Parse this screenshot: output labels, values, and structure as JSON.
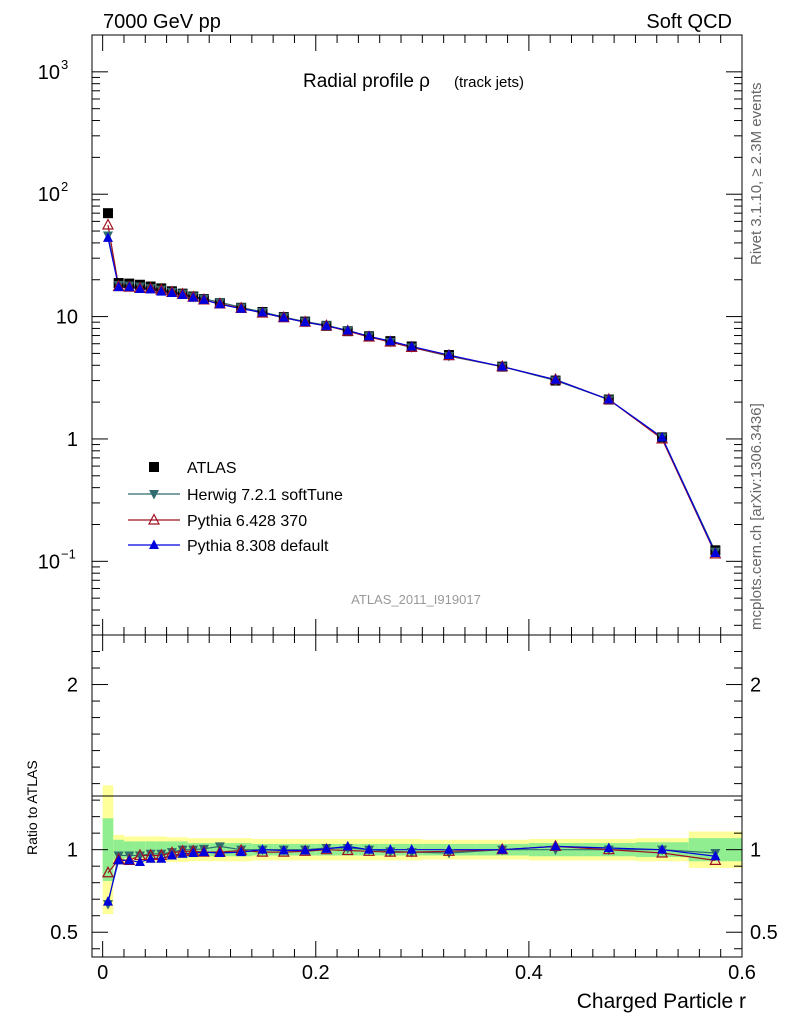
{
  "header": {
    "energy": "7000 GeV pp",
    "category": "Soft QCD"
  },
  "side_text": {
    "rivet": "Rivet 3.1.10, ≥ 2.3M events",
    "source": "mcplots.cern.ch [arXiv:1306.3436]"
  },
  "analysis_id": "ATLAS_2011_I919017",
  "colors": {
    "atlas": "#000000",
    "herwig": "#2f6b6f",
    "pythia6": "#a01020",
    "pythia8": "#0000dd",
    "band_inner": "#90ee90",
    "band_outer": "#ffff99"
  },
  "chart_data": [
    {
      "type": "scatter",
      "title": "Radial profile ρ",
      "title_suffix": "(track jets)",
      "xlabel": "",
      "ylabel": "",
      "yscale": "log",
      "xlim": [
        -0.01,
        0.6
      ],
      "ylim": [
        0.025,
        2000
      ],
      "y_ticks": [
        {
          "value": 0.1,
          "label_base": "10",
          "label_exp": "−1"
        },
        {
          "value": 1,
          "label_base": "1",
          "label_exp": ""
        },
        {
          "value": 10,
          "label_base": "10",
          "label_exp": ""
        },
        {
          "value": 100,
          "label_base": "10",
          "label_exp": "2"
        },
        {
          "value": 1000,
          "label_base": "10",
          "label_exp": "3"
        }
      ],
      "x": [
        0.005,
        0.015,
        0.025,
        0.035,
        0.045,
        0.055,
        0.065,
        0.075,
        0.085,
        0.095,
        0.11,
        0.13,
        0.15,
        0.17,
        0.19,
        0.21,
        0.23,
        0.25,
        0.27,
        0.29,
        0.325,
        0.375,
        0.425,
        0.475,
        0.525,
        0.575
      ],
      "series": [
        {
          "name": "ATLAS",
          "values": [
            70,
            18.8,
            18.6,
            18.2,
            17.6,
            17.0,
            16.1,
            15.4,
            14.6,
            13.9,
            12.9,
            11.8,
            10.9,
            9.9,
            9.1,
            8.4,
            7.6,
            6.9,
            6.3,
            5.7,
            4.85,
            3.9,
            3.0,
            2.1,
            1.03,
            0.123
          ],
          "marker": "square"
        },
        {
          "name": "Herwig 7.2.1 softTune",
          "values": [
            46,
            18.1,
            17.9,
            17.6,
            17.1,
            16.6,
            15.9,
            15.4,
            14.6,
            14.0,
            13.1,
            11.9,
            10.9,
            9.9,
            9.1,
            8.5,
            7.7,
            6.9,
            6.2,
            5.6,
            4.75,
            3.9,
            3.0,
            2.1,
            1.03,
            0.12
          ],
          "marker": "triangle-down"
        },
        {
          "name": "Pythia 6.428 370",
          "values": [
            56,
            17.6,
            17.4,
            17.0,
            16.9,
            16.4,
            15.8,
            15.2,
            14.4,
            13.7,
            12.7,
            11.7,
            10.7,
            9.8,
            9.0,
            8.4,
            7.6,
            6.8,
            6.2,
            5.6,
            4.8,
            3.9,
            3.05,
            2.1,
            1.0,
            0.115
          ],
          "marker": "triangle-open"
        },
        {
          "name": "Pythia 8.308 default",
          "values": [
            44,
            17.4,
            17.4,
            16.8,
            16.7,
            16.0,
            15.6,
            15.0,
            14.3,
            13.7,
            12.6,
            11.6,
            10.8,
            9.8,
            9.0,
            8.4,
            7.7,
            6.9,
            6.3,
            5.7,
            4.85,
            3.9,
            3.05,
            2.1,
            1.03,
            0.117
          ],
          "marker": "triangle-up"
        }
      ],
      "legend": [
        "ATLAS",
        "Herwig 7.2.1 softTune",
        "Pythia 6.428 370",
        "Pythia 8.308 default"
      ],
      "legend_position": "center-left"
    },
    {
      "type": "line",
      "title": "",
      "xlabel": "Charged Particle r",
      "ylabel": "Ratio to ATLAS",
      "xlim": [
        -0.01,
        0.6
      ],
      "ylim": [
        0.35,
        2.3
      ],
      "x_ticks": [
        0,
        0.2,
        0.4,
        0.6
      ],
      "x_tick_labels": [
        "0",
        "0.2",
        "0.4",
        "0.6"
      ],
      "y_ticks": [
        0.5,
        1,
        2
      ],
      "y_tick_labels": [
        "0.5",
        "1",
        "2"
      ],
      "bins": [
        [
          0.0,
          0.01
        ],
        [
          0.01,
          0.02
        ],
        [
          0.02,
          0.03
        ],
        [
          0.03,
          0.04
        ],
        [
          0.04,
          0.05
        ],
        [
          0.05,
          0.06
        ],
        [
          0.06,
          0.07
        ],
        [
          0.07,
          0.08
        ],
        [
          0.08,
          0.09
        ],
        [
          0.09,
          0.1
        ],
        [
          0.1,
          0.12
        ],
        [
          0.12,
          0.14
        ],
        [
          0.14,
          0.16
        ],
        [
          0.16,
          0.18
        ],
        [
          0.18,
          0.2
        ],
        [
          0.2,
          0.22
        ],
        [
          0.22,
          0.24
        ],
        [
          0.24,
          0.26
        ],
        [
          0.26,
          0.28
        ],
        [
          0.28,
          0.3
        ],
        [
          0.3,
          0.35
        ],
        [
          0.35,
          0.4
        ],
        [
          0.4,
          0.45
        ],
        [
          0.45,
          0.5
        ],
        [
          0.5,
          0.55
        ],
        [
          0.55,
          0.6
        ]
      ],
      "band_inner": [
        0.19,
        0.06,
        0.05,
        0.05,
        0.05,
        0.05,
        0.05,
        0.05,
        0.04,
        0.04,
        0.04,
        0.04,
        0.035,
        0.035,
        0.035,
        0.035,
        0.035,
        0.035,
        0.035,
        0.035,
        0.035,
        0.035,
        0.04,
        0.04,
        0.045,
        0.07
      ],
      "band_outer": [
        0.39,
        0.09,
        0.08,
        0.08,
        0.08,
        0.08,
        0.075,
        0.075,
        0.07,
        0.07,
        0.07,
        0.07,
        0.065,
        0.065,
        0.065,
        0.065,
        0.065,
        0.065,
        0.065,
        0.065,
        0.06,
        0.06,
        0.065,
        0.065,
        0.07,
        0.11
      ],
      "series": [
        {
          "name": "Herwig 7.2.1 softTune",
          "values": [
            0.67,
            0.965,
            0.965,
            0.965,
            0.975,
            0.975,
            0.985,
            1.0,
            1.0,
            1.005,
            1.02,
            1.0,
            1.0,
            1.0,
            1.0,
            1.01,
            1.01,
            1.0,
            0.99,
            0.985,
            0.98,
            1.0,
            1.0,
            1.0,
            1.0,
            0.98
          ]
        },
        {
          "name": "Pythia 6.428 370",
          "values": [
            0.86,
            0.94,
            0.935,
            0.965,
            0.965,
            0.965,
            0.98,
            0.99,
            0.99,
            0.985,
            0.985,
            0.995,
            0.985,
            0.985,
            0.99,
            1.0,
            0.995,
            0.99,
            0.985,
            0.985,
            0.99,
            1.0,
            1.02,
            1.0,
            0.98,
            0.935
          ]
        },
        {
          "name": "Pythia 8.308 default",
          "values": [
            0.685,
            0.935,
            0.935,
            0.925,
            0.945,
            0.945,
            0.965,
            0.975,
            0.98,
            0.985,
            0.98,
            0.985,
            1.0,
            0.995,
            0.995,
            1.005,
            1.02,
            1.0,
            1.0,
            1.0,
            1.0,
            1.0,
            1.02,
            1.01,
            1.0,
            0.96
          ]
        }
      ]
    }
  ]
}
